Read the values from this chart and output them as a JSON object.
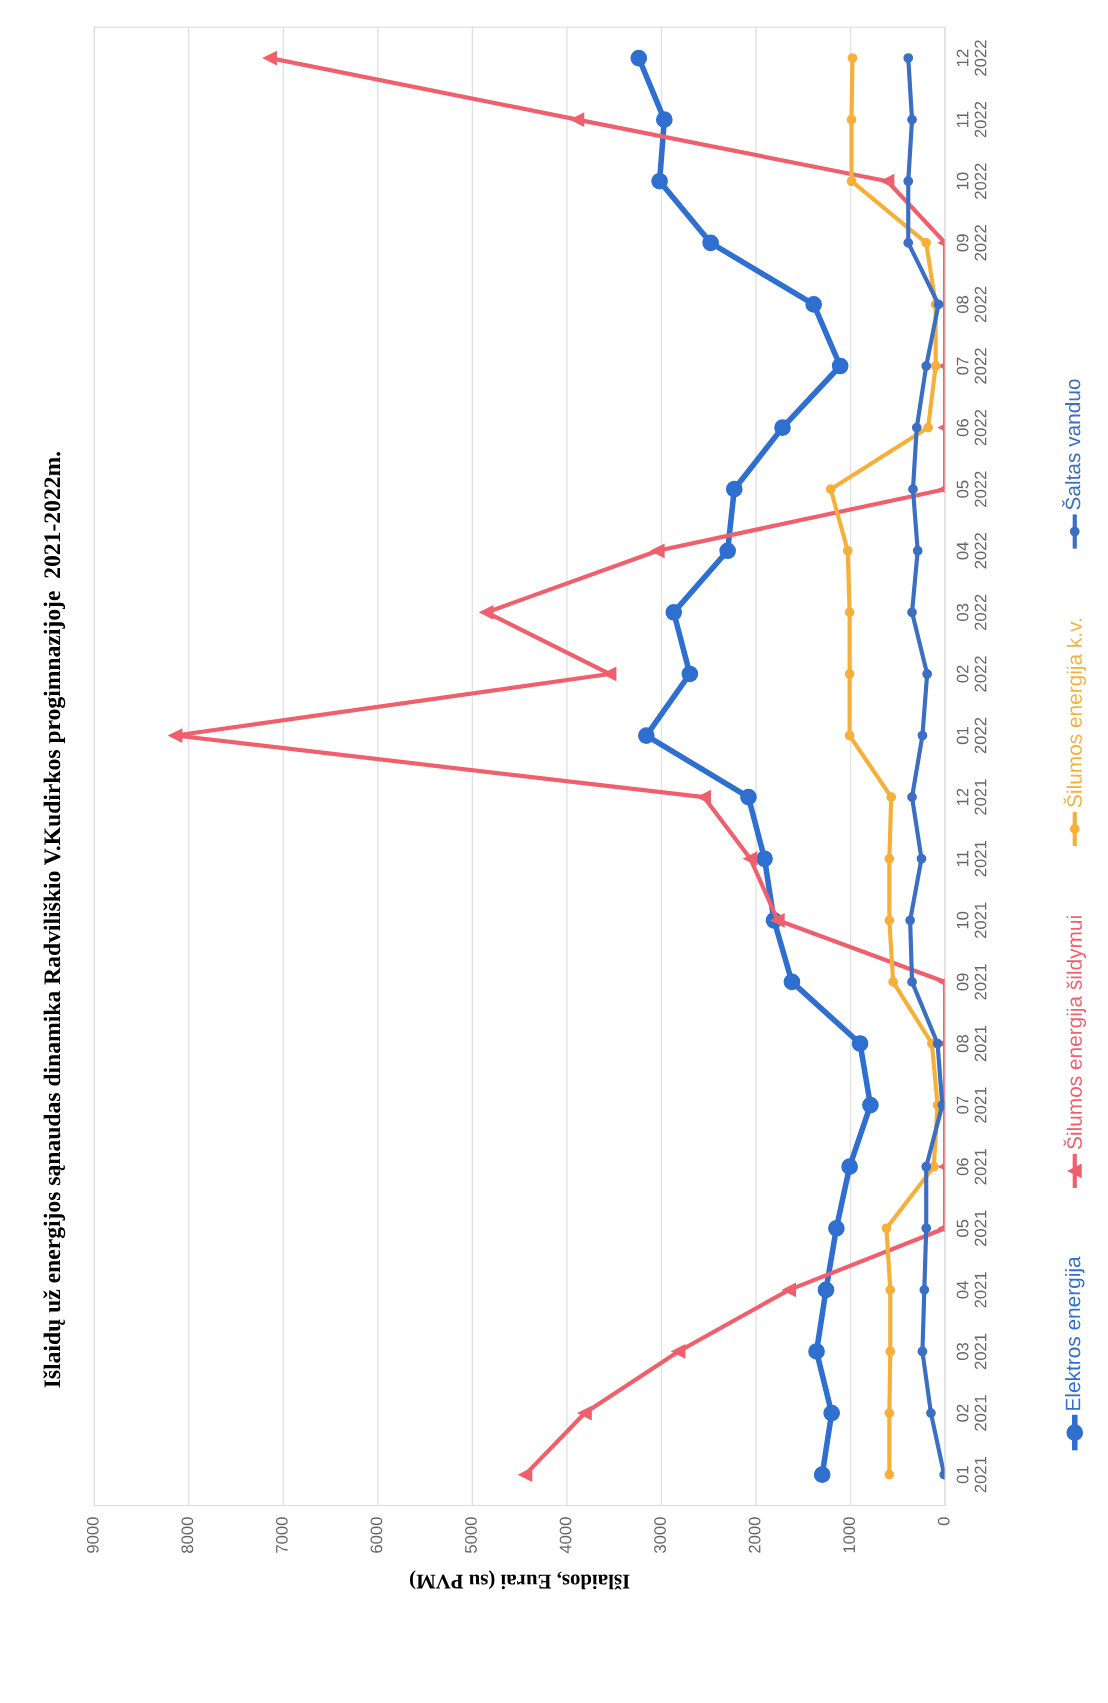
{
  "chart_data": {
    "type": "line",
    "orientation": "horizontal",
    "title": "Išlaidų už energijos sąnaudas dinamika Radviliškio V.Kudirkos progimnazijoje  2021-2022m.",
    "xlabel": "Išlaidos, Eurai (su PVM)",
    "categories": [
      "12\n2022",
      "11\n2022",
      "10\n2022",
      "09\n2022",
      "08\n2022",
      "07\n2022",
      "06\n2022",
      "05\n2022",
      "04\n2022",
      "03\n2022",
      "02\n2022",
      "01\n2022",
      "12\n2021",
      "11\n2021",
      "10\n2021",
      "09\n2021",
      "08\n2021",
      "07\n2021",
      "06\n2021",
      "05\n2021",
      "04\n2021",
      "03\n2021",
      "02\n2021",
      "01\n2021"
    ],
    "series": [
      {
        "name": "Elektros energija",
        "color": "#2e6fd0",
        "marker": "circle",
        "values": [
          3240,
          2970,
          3020,
          2480,
          1390,
          1110,
          1720,
          2230,
          2300,
          2870,
          2700,
          3160,
          2080,
          1910,
          1810,
          1620,
          900,
          790,
          1010,
          1150,
          1260,
          1360,
          1200,
          1300
        ]
      },
      {
        "name": "Šilumos energija šildymui",
        "color": "#ef5f6c",
        "marker": "triangle",
        "values": [
          7140,
          3890,
          610,
          0,
          0,
          0,
          0,
          0,
          3040,
          4850,
          3550,
          8140,
          2550,
          2060,
          1770,
          0,
          0,
          0,
          0,
          0,
          1650,
          2820,
          3810,
          4440
        ]
      },
      {
        "name": "Šilumos energija k.v.",
        "color": "#f6b03a",
        "marker": "circle",
        "values": [
          980,
          990,
          990,
          200,
          100,
          100,
          180,
          1210,
          1030,
          1010,
          1010,
          1010,
          570,
          590,
          590,
          550,
          140,
          80,
          120,
          620,
          580,
          580,
          590,
          590
        ]
      },
      {
        "name": "Šaltas vanduo",
        "color": "#3a6fc4",
        "marker": "circle",
        "values": [
          390,
          350,
          390,
          390,
          70,
          200,
          300,
          340,
          290,
          350,
          190,
          240,
          350,
          250,
          370,
          350,
          80,
          30,
          200,
          200,
          220,
          240,
          150,
          10
        ]
      }
    ],
    "xlim": [
      9000,
      0
    ],
    "xticks": [
      0,
      1000,
      2000,
      3000,
      4000,
      5000,
      6000,
      7000,
      8000,
      9000
    ],
    "grid": "x",
    "legend": "right"
  }
}
